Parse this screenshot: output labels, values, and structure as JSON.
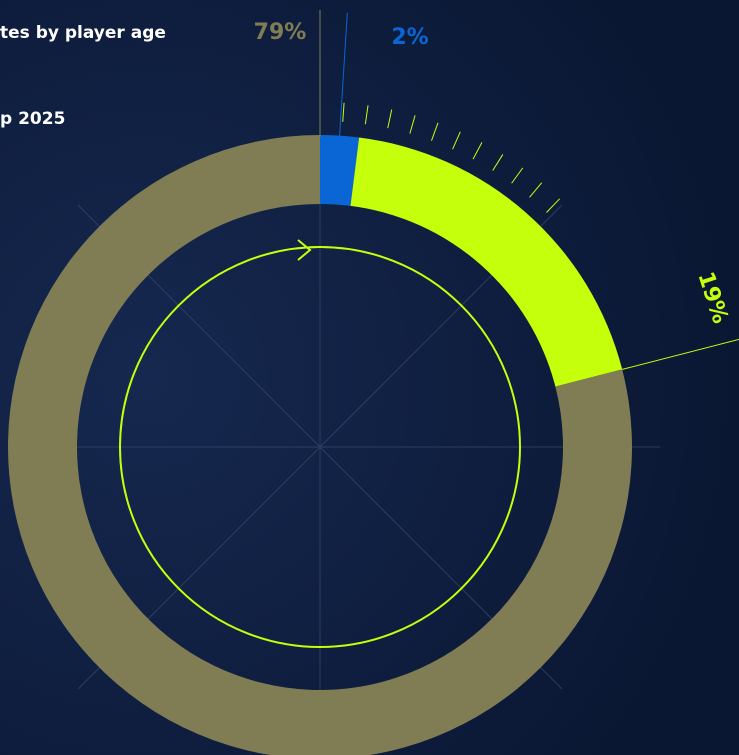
{
  "chart_data": {
    "type": "pie",
    "title": "tes by player age",
    "subtitle": "p 2025",
    "values": [
      2,
      19,
      79
    ],
    "value_labels": [
      "2%",
      "19%",
      "79%"
    ],
    "colors": [
      "#0a66d4",
      "#c5ff0c",
      "#807d54"
    ]
  }
}
